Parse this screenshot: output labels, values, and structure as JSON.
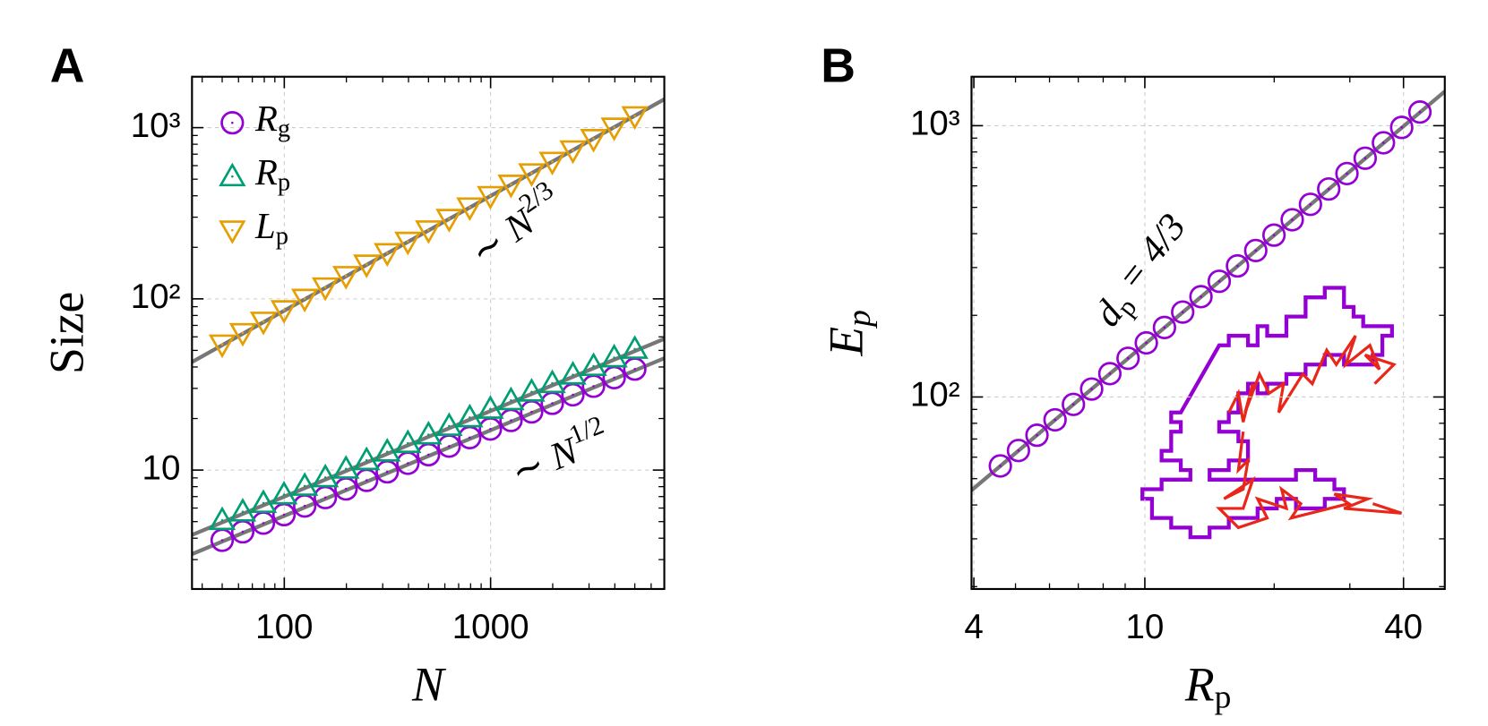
{
  "chart_data": [
    {
      "type": "scatter",
      "panel_label": "A",
      "xlabel": "N",
      "ylabel": "Size",
      "log_x": true,
      "log_y": true,
      "grid": true,
      "legend": "upper left",
      "xlim": [
        35.7,
        6950
      ],
      "ylim": [
        2.02,
        1983
      ],
      "xticks": [
        100,
        1000
      ],
      "xminor": [
        40,
        50,
        60,
        70,
        80,
        90,
        200,
        300,
        400,
        500,
        600,
        700,
        800,
        900,
        2000,
        3000,
        4000,
        5000,
        6000
      ],
      "yticks": [
        10,
        {
          "value": 100,
          "label": "10²"
        },
        {
          "value": 1000,
          "label": "10³"
        }
      ],
      "yminor": [
        3,
        4,
        5,
        6,
        7,
        8,
        9,
        20,
        30,
        40,
        50,
        60,
        70,
        80,
        90,
        200,
        300,
        400,
        500,
        600,
        700,
        800,
        900
      ],
      "series": [
        {
          "name": "Rg",
          "color": "#9400d3",
          "marker": "circle",
          "x": [
            50,
            62.9,
            79.2,
            99.7,
            125.6,
            158.1,
            199.1,
            250.6,
            315.5,
            397.2,
            500,
            629.5,
            792.4,
            997.6,
            1256,
            1581,
            1991,
            2506,
            3155,
            3972,
            5000
          ],
          "values": [
            3.89,
            4.36,
            4.9,
            5.49,
            6.17,
            6.91,
            7.76,
            8.71,
            9.77,
            10.96,
            12.3,
            13.8,
            15.48,
            17.37,
            19.49,
            21.87,
            24.54,
            27.53,
            30.89,
            34.66,
            38.89
          ]
        },
        {
          "name": "Rp",
          "color": "#009e73",
          "marker": "triangle-up",
          "x": [
            50,
            62.9,
            79.2,
            99.7,
            125.6,
            158.1,
            199.1,
            250.6,
            315.5,
            397.2,
            500,
            629.5,
            792.4,
            997.6,
            1256,
            1581,
            1991,
            2506,
            3155,
            3972,
            5000
          ],
          "values": [
            5.09,
            5.71,
            6.41,
            7.19,
            8.07,
            9.05,
            10.16,
            11.4,
            12.79,
            14.35,
            16.1,
            18.06,
            20.27,
            22.74,
            25.52,
            28.63,
            32.13,
            36.04,
            40.44,
            45.37,
            50.91
          ]
        },
        {
          "name": "Lp",
          "color": "#e69f00",
          "marker": "triangle-down",
          "x": [
            50,
            62.9,
            79.2,
            99.7,
            125.6,
            158.1,
            199.1,
            250.6,
            315.5,
            397.2,
            500,
            629.5,
            792.4,
            997.6,
            1256,
            1581,
            1991,
            2506,
            3155,
            3972,
            5000
          ],
          "values": [
            54.3,
            63.3,
            73.8,
            86.1,
            100.4,
            117,
            136.4,
            159.1,
            185.5,
            216.3,
            252,
            294,
            343,
            400,
            466,
            543,
            634,
            739,
            861,
            1004,
            1170
          ]
        }
      ],
      "fit_lines": [
        {
          "color": "#777777",
          "x": [
            35.7,
            6950
          ],
          "values": [
            42.8,
            1464
          ]
        },
        {
          "color": "#777777",
          "x": [
            35.7,
            6950
          ],
          "values": [
            4.18,
            58.4
          ]
        },
        {
          "color": "#777777",
          "x": [
            35.7,
            6950
          ],
          "values": [
            3.23,
            45
          ]
        }
      ],
      "annotations": [
        [
          {
            "t": "∼ "
          },
          {
            "t": "N",
            "style": "it"
          },
          {
            "t": "2/3",
            "style": "sup"
          }
        ],
        [
          {
            "t": "∼ "
          },
          {
            "t": "N",
            "style": "it"
          },
          {
            "t": "1/2",
            "style": "sup"
          }
        ]
      ]
    },
    {
      "type": "scatter",
      "panel_label": "B",
      "xlabel": "Rp",
      "ylabel": "Ep",
      "log_x": true,
      "log_y": true,
      "grid": true,
      "xlim": [
        3.95,
        49.9
      ],
      "ylim": [
        19.6,
        1515
      ],
      "xticks": [
        4,
        10,
        40
      ],
      "xminor": [
        5,
        6,
        7,
        8,
        9,
        20,
        30
      ],
      "yticks": [
        {
          "value": 100,
          "label": "10²"
        },
        {
          "value": 1000,
          "label": "10³"
        }
      ],
      "yminor": [
        20,
        30,
        40,
        50,
        60,
        70,
        80,
        90,
        200,
        300,
        400,
        500,
        600,
        700,
        800,
        900
      ],
      "series": [
        {
          "color": "#9400d3",
          "marker": "circle",
          "x": [
            4.61,
            5.08,
            5.61,
            6.18,
            6.82,
            7.52,
            8.29,
            9.14,
            10.08,
            11.11,
            12.25,
            13.51,
            14.9,
            16.43,
            18.12,
            19.98,
            22.03,
            24.29,
            26.79,
            29.54,
            32.57,
            35.92,
            39.61,
            43.67
          ],
          "values": [
            55.7,
            63.5,
            72.3,
            82.4,
            93.9,
            107,
            121.9,
            138.9,
            158.3,
            180.4,
            205.6,
            234.3,
            267,
            304.2,
            346.7,
            395,
            450.2,
            513,
            584.5,
            666.1,
            759,
            864.9,
            985.6,
            1123
          ]
        }
      ],
      "fit_lines": [
        {
          "color": "#777777",
          "x": [
            3.95,
            49.9
          ],
          "values": [
            45.3,
            1337
          ]
        }
      ],
      "annotations": [
        [
          {
            "t": "d",
            "style": "it"
          },
          {
            "t": "p",
            "style": "sub"
          },
          {
            "t": " = 4/3",
            "style": "it"
          }
        ]
      ]
    }
  ]
}
